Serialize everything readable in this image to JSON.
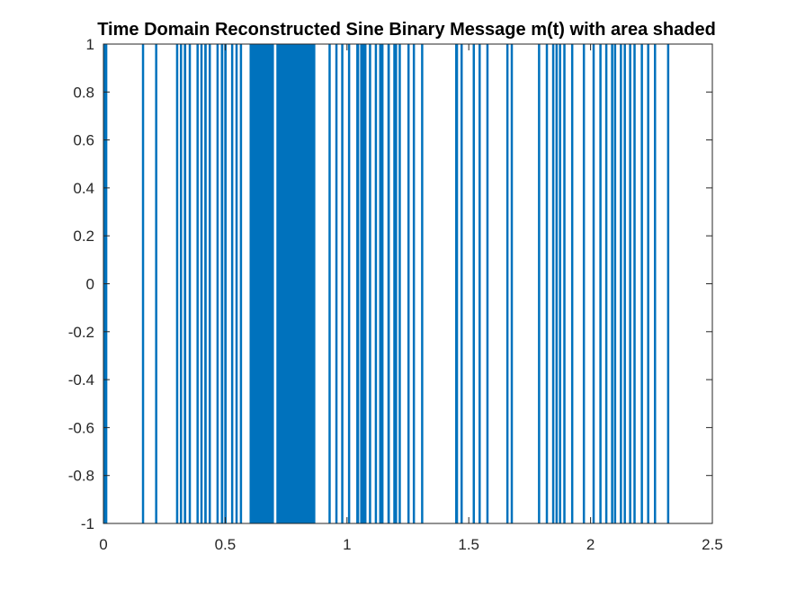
{
  "chart_data": {
    "type": "area",
    "title": "Time Domain Reconstructed Sine Binary Message m(t) with area shaded",
    "xlabel": "",
    "ylabel": "",
    "xlim": [
      0,
      2.5
    ],
    "ylim": [
      -1,
      1
    ],
    "x_ticks": [
      0,
      0.5,
      1,
      1.5,
      2,
      2.5
    ],
    "x_tick_labels": [
      "0",
      "0.5",
      "1",
      "1.5",
      "2",
      "2.5"
    ],
    "y_ticks": [
      -1,
      -0.8,
      -0.6,
      -0.4,
      -0.2,
      0,
      0.2,
      0.4,
      0.6,
      0.8,
      1
    ],
    "y_tick_labels": [
      "-1",
      "-0.8",
      "-0.6",
      "-0.4",
      "-0.2",
      "0",
      "0.2",
      "0.4",
      "0.6",
      "0.8",
      "1"
    ],
    "grid": false,
    "series": [
      {
        "fill_color": "#0072BD",
        "shaded_intervals": [
          [
            0.0,
            0.002
          ],
          [
            0.006,
            0.016
          ],
          [
            0.158,
            0.164
          ],
          [
            0.212,
            0.218
          ],
          [
            0.298,
            0.304
          ],
          [
            0.314,
            0.321
          ],
          [
            0.33,
            0.34
          ],
          [
            0.35,
            0.358
          ],
          [
            0.382,
            0.39
          ],
          [
            0.398,
            0.406
          ],
          [
            0.414,
            0.424
          ],
          [
            0.432,
            0.438
          ],
          [
            0.464,
            0.47
          ],
          [
            0.482,
            0.492
          ],
          [
            0.496,
            0.506
          ],
          [
            0.524,
            0.53
          ],
          [
            0.542,
            0.548
          ],
          [
            0.56,
            0.566
          ],
          [
            0.6,
            0.7
          ],
          [
            0.71,
            0.87
          ],
          [
            0.924,
            0.93
          ],
          [
            0.952,
            0.958
          ],
          [
            0.976,
            0.984
          ],
          [
            1.004,
            1.01
          ],
          [
            1.038,
            1.05
          ],
          [
            1.054,
            1.08
          ],
          [
            1.09,
            1.098
          ],
          [
            1.114,
            1.12
          ],
          [
            1.132,
            1.15
          ],
          [
            1.166,
            1.176
          ],
          [
            1.19,
            1.206
          ],
          [
            1.212,
            1.22
          ],
          [
            1.248,
            1.256
          ],
          [
            1.27,
            1.276
          ],
          [
            1.304,
            1.31
          ],
          [
            1.444,
            1.456
          ],
          [
            1.466,
            1.474
          ],
          [
            1.516,
            1.522
          ],
          [
            1.54,
            1.548
          ],
          [
            1.572,
            1.578
          ],
          [
            1.654,
            1.662
          ],
          [
            1.672,
            1.68
          ],
          [
            1.784,
            1.79
          ],
          [
            1.816,
            1.822
          ],
          [
            1.842,
            1.848
          ],
          [
            1.856,
            1.862
          ],
          [
            1.87,
            1.876
          ],
          [
            1.888,
            1.894
          ],
          [
            1.92,
            1.928
          ],
          [
            1.968,
            1.974
          ],
          [
            2.008,
            2.014
          ],
          [
            2.036,
            2.042
          ],
          [
            2.06,
            2.066
          ],
          [
            2.084,
            2.092
          ],
          [
            2.096,
            2.1
          ],
          [
            2.12,
            2.128
          ],
          [
            2.136,
            2.144
          ],
          [
            2.158,
            2.164
          ],
          [
            2.176,
            2.182
          ],
          [
            2.206,
            2.214
          ],
          [
            2.232,
            2.238
          ],
          [
            2.26,
            2.266
          ],
          [
            2.314,
            2.322
          ]
        ]
      }
    ]
  }
}
